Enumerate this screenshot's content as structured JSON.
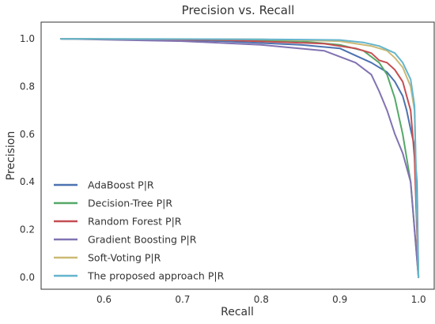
{
  "chart_data": {
    "type": "line",
    "title": "Precision vs. Recall",
    "xlabel": "Recall",
    "ylabel": "Precision",
    "xlim": [
      0.52,
      1.02
    ],
    "ylim": [
      -0.05,
      1.07
    ],
    "xticks": [
      "0.6",
      "0.7",
      "0.8",
      "0.9",
      "1.0"
    ],
    "xtick_values": [
      0.6,
      0.7,
      0.8,
      0.9,
      1.0
    ],
    "yticks": [
      "0.0",
      "0.2",
      "0.4",
      "0.6",
      "0.8",
      "1.0"
    ],
    "ytick_values": [
      0.0,
      0.2,
      0.4,
      0.6,
      0.8,
      1.0
    ],
    "grid": false,
    "legend_position": "lower-left",
    "series": [
      {
        "name": "AdaBoost P|R",
        "color": "#4c72b0",
        "points": [
          [
            0.545,
            1.0
          ],
          [
            0.65,
            0.997
          ],
          [
            0.75,
            0.99
          ],
          [
            0.85,
            0.975
          ],
          [
            0.9,
            0.96
          ],
          [
            0.92,
            0.93
          ],
          [
            0.94,
            0.9
          ],
          [
            0.96,
            0.86
          ],
          [
            0.97,
            0.82
          ],
          [
            0.98,
            0.76
          ],
          [
            0.985,
            0.7
          ],
          [
            0.99,
            0.62
          ],
          [
            0.995,
            0.55
          ],
          [
            0.998,
            0.4
          ],
          [
            1.0,
            0.0
          ]
        ]
      },
      {
        "name": "Decision-Tree P|R",
        "color": "#55a868",
        "points": [
          [
            0.545,
            1.0
          ],
          [
            0.7,
            0.997
          ],
          [
            0.85,
            0.99
          ],
          [
            0.9,
            0.975
          ],
          [
            0.93,
            0.95
          ],
          [
            0.95,
            0.9
          ],
          [
            0.96,
            0.85
          ],
          [
            0.97,
            0.75
          ],
          [
            0.98,
            0.6
          ],
          [
            0.99,
            0.4
          ],
          [
            1.0,
            0.0
          ]
        ]
      },
      {
        "name": "Random Forest P|R",
        "color": "#c44e52",
        "points": [
          [
            0.545,
            1.0
          ],
          [
            0.75,
            0.995
          ],
          [
            0.88,
            0.98
          ],
          [
            0.92,
            0.96
          ],
          [
            0.94,
            0.94
          ],
          [
            0.95,
            0.91
          ],
          [
            0.96,
            0.9
          ],
          [
            0.97,
            0.87
          ],
          [
            0.98,
            0.82
          ],
          [
            0.99,
            0.7
          ],
          [
            0.995,
            0.5
          ],
          [
            1.0,
            0.0
          ]
        ]
      },
      {
        "name": "Gradient Boosting P|R",
        "color": "#8172b2",
        "points": [
          [
            0.545,
            1.0
          ],
          [
            0.7,
            0.99
          ],
          [
            0.8,
            0.975
          ],
          [
            0.88,
            0.95
          ],
          [
            0.92,
            0.9
          ],
          [
            0.94,
            0.85
          ],
          [
            0.95,
            0.78
          ],
          [
            0.96,
            0.7
          ],
          [
            0.97,
            0.6
          ],
          [
            0.98,
            0.52
          ],
          [
            0.99,
            0.4
          ],
          [
            0.995,
            0.2
          ],
          [
            1.0,
            0.0
          ]
        ]
      },
      {
        "name": "Soft-Voting P|R",
        "color": "#ccb974",
        "points": [
          [
            0.545,
            1.0
          ],
          [
            0.8,
            0.998
          ],
          [
            0.9,
            0.99
          ],
          [
            0.94,
            0.97
          ],
          [
            0.96,
            0.95
          ],
          [
            0.97,
            0.92
          ],
          [
            0.98,
            0.88
          ],
          [
            0.99,
            0.8
          ],
          [
            0.995,
            0.7
          ],
          [
            1.0,
            0.0
          ]
        ]
      },
      {
        "name": "The proposed approach P|R",
        "color": "#64b5cd",
        "points": [
          [
            0.545,
            1.0
          ],
          [
            0.8,
            0.998
          ],
          [
            0.9,
            0.995
          ],
          [
            0.93,
            0.985
          ],
          [
            0.95,
            0.97
          ],
          [
            0.97,
            0.94
          ],
          [
            0.98,
            0.9
          ],
          [
            0.99,
            0.83
          ],
          [
            0.995,
            0.72
          ],
          [
            1.0,
            0.0
          ]
        ]
      }
    ]
  }
}
